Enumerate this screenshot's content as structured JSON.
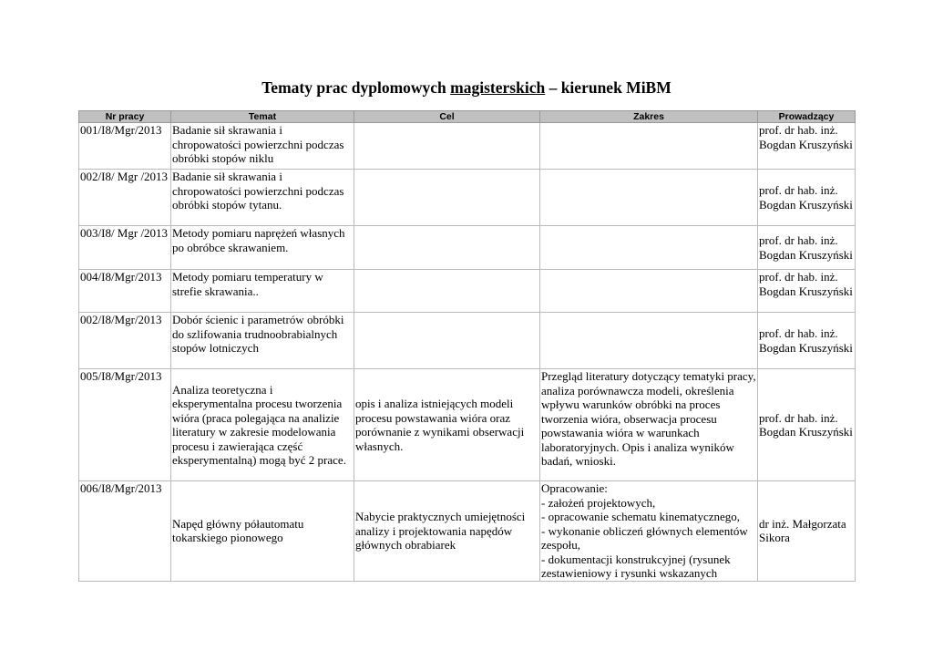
{
  "title": {
    "before": "Tematy prac dyplomowych ",
    "underlined": "magisterskich",
    "after": " – kierunek MiBM"
  },
  "columns": [
    "Nr pracy",
    "Temat",
    "Cel",
    "Zakres",
    "Prowadzący"
  ],
  "rows": [
    {
      "nr": "001/I8/Mgr/2013",
      "temat": "Badanie sił skrawania i chropowatości powierzchni podczas obróbki stopów niklu",
      "cel": "",
      "zakres": "",
      "prowadzacy": "prof. dr hab. inż. Bogdan Kruszyński"
    },
    {
      "nr": "002/I8/ Mgr /2013",
      "temat": "Badanie sił skrawania i chropowatości powierzchni podczas obróbki stopów tytanu.",
      "cel": "",
      "zakres": "",
      "prowadzacy": "prof. dr hab. inż. Bogdan Kruszyński"
    },
    {
      "nr": "003/I8/ Mgr /2013",
      "temat": "Metody pomiaru naprężeń własnych po obróbce skrawaniem.",
      "cel": "",
      "zakres": "",
      "prowadzacy": "prof. dr hab. inż. Bogdan Kruszyński"
    },
    {
      "nr": "004/I8/Mgr/2013",
      "temat": "Metody pomiaru temperatury w strefie skrawania..",
      "cel": "",
      "zakres": "",
      "prowadzacy": "prof. dr hab. inż. Bogdan Kruszyński"
    },
    {
      "nr": "002/I8/Mgr/2013",
      "temat": "Dobór ścienic i parametrów obróbki do szlifowania trudnoobrabialnych stopów lotniczych",
      "cel": "",
      "zakres": "",
      "prowadzacy": "prof. dr hab. inż. Bogdan Kruszyński"
    },
    {
      "nr": "005/I8/Mgr/2013",
      "temat": "Analiza teoretyczna i eksperymentalna procesu tworzenia wióra (praca polegająca na analizie literatury w zakresie modelowania procesu i zawierająca część eksperymentalną) mogą być 2 prace.",
      "cel": "opis i analiza istniejących modeli procesu powstawania wióra oraz porównanie z wynikami obserwacji własnych.",
      "zakres": "Przegląd literatury dotyczący tematyki pracy, analiza porównawcza modeli, określenia wpływu warunków obróbki na proces tworzenia wióra, obserwacja procesu powstawania wióra w warunkach laboratoryjnych. Opis i analiza wyników badań, wnioski.",
      "prowadzacy": "prof. dr hab. inż. Bogdan Kruszyński"
    },
    {
      "nr": "006/I8/Mgr/2013",
      "temat": "Napęd główny półautomatu tokarskiego pionowego",
      "cel": "Nabycie praktycznych umiejętności analizy i projektowania napędów głównych obrabiarek",
      "zakres": "Opracowanie:\n- założeń projektowych,\n- opracowanie schematu kinematycznego,\n- wykonanie obliczeń głównych elementów zespołu,\n- dokumentacji konstrukcyjnej (rysunek zestawieniowy i rysunki wskazanych",
      "prowadzacy": "dr inż. Małgorzata Sikora"
    }
  ]
}
